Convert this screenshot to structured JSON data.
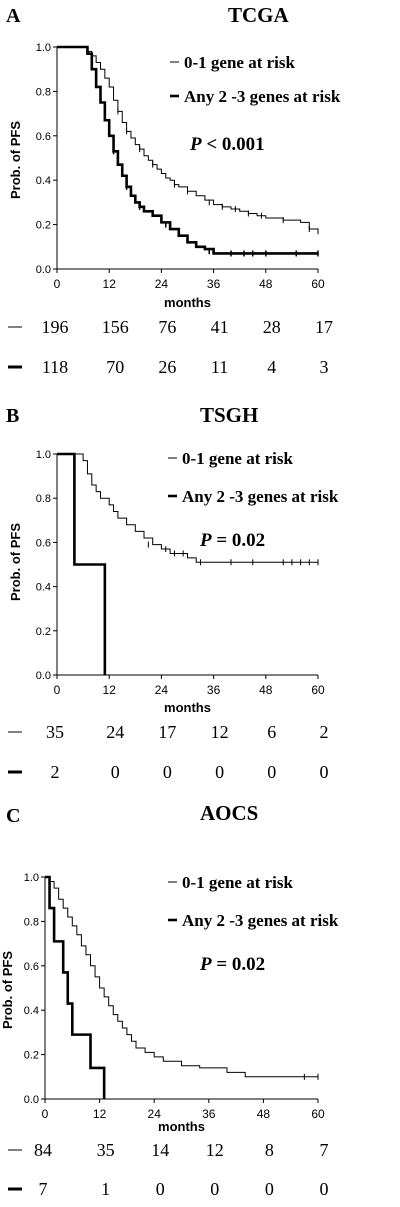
{
  "chart_data": [
    {
      "type": "line",
      "panel_letter": "A",
      "title": "TCGA",
      "xlabel": "months",
      "ylabel": "Prob. of PFS",
      "xlim": [
        0,
        60
      ],
      "ylim": [
        0,
        1.0
      ],
      "x_ticks": [
        0,
        12,
        24,
        36,
        48,
        60
      ],
      "y_ticks": [
        0.0,
        0.2,
        0.4,
        0.6,
        0.8,
        1.0
      ],
      "legend_position": "top-right",
      "p_label": "P",
      "p_text": " < 0.001",
      "series": [
        {
          "name": "0-1 gene at risk",
          "style": "thin",
          "points": [
            [
              0,
              1.0
            ],
            [
              6,
              1.0
            ],
            [
              7,
              0.98
            ],
            [
              8,
              0.96
            ],
            [
              9,
              0.93
            ],
            [
              10,
              0.9
            ],
            [
              11,
              0.86
            ],
            [
              12,
              0.82
            ],
            [
              13,
              0.76
            ],
            [
              14,
              0.71
            ],
            [
              15,
              0.66
            ],
            [
              16,
              0.62
            ],
            [
              17,
              0.59
            ],
            [
              18,
              0.56
            ],
            [
              19,
              0.54
            ],
            [
              20,
              0.51
            ],
            [
              21,
              0.49
            ],
            [
              22,
              0.47
            ],
            [
              23,
              0.45
            ],
            [
              24,
              0.43
            ],
            [
              25,
              0.41
            ],
            [
              26,
              0.4
            ],
            [
              27,
              0.38
            ],
            [
              28,
              0.37
            ],
            [
              30,
              0.35
            ],
            [
              32,
              0.33
            ],
            [
              34,
              0.31
            ],
            [
              36,
              0.29
            ],
            [
              38,
              0.28
            ],
            [
              40,
              0.27
            ],
            [
              42,
              0.26
            ],
            [
              44,
              0.25
            ],
            [
              46,
              0.24
            ],
            [
              48,
              0.23
            ],
            [
              52,
              0.22
            ],
            [
              56,
              0.21
            ],
            [
              58,
              0.18
            ],
            [
              60,
              0.17
            ]
          ],
          "censored": [
            [
              14,
              0.71
            ],
            [
              16,
              0.62
            ],
            [
              19,
              0.54
            ],
            [
              22,
              0.47
            ],
            [
              27,
              0.38
            ],
            [
              30,
              0.35
            ],
            [
              35,
              0.3
            ],
            [
              38,
              0.28
            ],
            [
              41,
              0.27
            ],
            [
              44,
              0.25
            ],
            [
              47,
              0.24
            ],
            [
              52,
              0.22
            ],
            [
              58,
              0.18
            ],
            [
              60,
              0.17
            ]
          ]
        },
        {
          "name": "Any 2 -3 genes at risk",
          "style": "thick",
          "points": [
            [
              0,
              1.0
            ],
            [
              6,
              1.0
            ],
            [
              7,
              0.97
            ],
            [
              8,
              0.9
            ],
            [
              9,
              0.82
            ],
            [
              10,
              0.75
            ],
            [
              11,
              0.67
            ],
            [
              12,
              0.6
            ],
            [
              13,
              0.53
            ],
            [
              14,
              0.47
            ],
            [
              15,
              0.42
            ],
            [
              16,
              0.37
            ],
            [
              17,
              0.33
            ],
            [
              18,
              0.3
            ],
            [
              19,
              0.28
            ],
            [
              20,
              0.26
            ],
            [
              22,
              0.24
            ],
            [
              24,
              0.21
            ],
            [
              26,
              0.18
            ],
            [
              28,
              0.15
            ],
            [
              30,
              0.12
            ],
            [
              32,
              0.1
            ],
            [
              34,
              0.09
            ],
            [
              36,
              0.07
            ],
            [
              60,
              0.07
            ]
          ],
          "censored": [
            [
              13,
              0.53
            ],
            [
              16,
              0.37
            ],
            [
              19,
              0.28
            ],
            [
              25,
              0.2
            ],
            [
              35,
              0.08
            ],
            [
              40,
              0.07
            ],
            [
              43,
              0.07
            ],
            [
              45,
              0.07
            ],
            [
              48,
              0.07
            ],
            [
              55,
              0.07
            ],
            [
              60,
              0.07
            ]
          ]
        }
      ],
      "at_risk": [
        {
          "values": [
            "196",
            "156",
            "76",
            "41",
            "28",
            "17"
          ]
        },
        {
          "values": [
            "118",
            "70",
            "26",
            "11",
            "4",
            "3"
          ]
        }
      ]
    },
    {
      "type": "line",
      "panel_letter": "B",
      "title": "TSGH",
      "xlabel": "months",
      "ylabel": "Prob. of PFS",
      "xlim": [
        0,
        60
      ],
      "ylim": [
        0,
        1.0
      ],
      "x_ticks": [
        0,
        12,
        24,
        36,
        48,
        60
      ],
      "y_ticks": [
        0.0,
        0.2,
        0.4,
        0.6,
        0.8,
        1.0
      ],
      "legend_position": "top-right",
      "p_label": "P",
      "p_text": " = 0.02",
      "series": [
        {
          "name": "0-1 gene at risk",
          "style": "thin",
          "points": [
            [
              0,
              1.0
            ],
            [
              5,
              1.0
            ],
            [
              6,
              0.97
            ],
            [
              7,
              0.91
            ],
            [
              8,
              0.86
            ],
            [
              9,
              0.83
            ],
            [
              10,
              0.8
            ],
            [
              12,
              0.77
            ],
            [
              13,
              0.74
            ],
            [
              14,
              0.71
            ],
            [
              16,
              0.68
            ],
            [
              18,
              0.65
            ],
            [
              20,
              0.62
            ],
            [
              22,
              0.59
            ],
            [
              24,
              0.57
            ],
            [
              26,
              0.55
            ],
            [
              30,
              0.53
            ],
            [
              32,
              0.51
            ],
            [
              60,
              0.51
            ]
          ],
          "censored": [
            [
              21,
              0.59
            ],
            [
              25,
              0.57
            ],
            [
              27,
              0.55
            ],
            [
              29,
              0.55
            ],
            [
              33,
              0.51
            ],
            [
              40,
              0.51
            ],
            [
              45,
              0.51
            ],
            [
              52,
              0.51
            ],
            [
              54,
              0.51
            ],
            [
              56,
              0.51
            ],
            [
              58,
              0.51
            ],
            [
              60,
              0.51
            ]
          ]
        },
        {
          "name": "Any 2 -3 genes at risk",
          "style": "thick",
          "points": [
            [
              0,
              1.0
            ],
            [
              4,
              1.0
            ],
            [
              4,
              0.5
            ],
            [
              11,
              0.5
            ],
            [
              11,
              0.0
            ]
          ],
          "censored": []
        }
      ],
      "at_risk": [
        {
          "values": [
            "35",
            "24",
            "17",
            "12",
            "6",
            "2"
          ]
        },
        {
          "values": [
            "2",
            "0",
            "0",
            "0",
            "0",
            "0"
          ]
        }
      ]
    },
    {
      "type": "line",
      "panel_letter": "C",
      "title": "AOCS",
      "xlabel": "months",
      "ylabel": "Prob. of PFS",
      "xlim": [
        0,
        60
      ],
      "ylim": [
        0,
        1.0
      ],
      "x_ticks": [
        0,
        12,
        24,
        36,
        48,
        60
      ],
      "y_ticks": [
        0.0,
        0.2,
        0.4,
        0.6,
        0.8,
        1.0
      ],
      "legend_position": "top-right",
      "p_label": "P",
      "p_text": " = 0.02",
      "series": [
        {
          "name": "0-1 gene at risk",
          "style": "thin",
          "points": [
            [
              0,
              1.0
            ],
            [
              1,
              0.98
            ],
            [
              2,
              0.95
            ],
            [
              3,
              0.9
            ],
            [
              4,
              0.86
            ],
            [
              5,
              0.82
            ],
            [
              6,
              0.78
            ],
            [
              7,
              0.74
            ],
            [
              8,
              0.69
            ],
            [
              9,
              0.65
            ],
            [
              10,
              0.6
            ],
            [
              11,
              0.55
            ],
            [
              12,
              0.5
            ],
            [
              13,
              0.46
            ],
            [
              14,
              0.42
            ],
            [
              15,
              0.38
            ],
            [
              16,
              0.35
            ],
            [
              17,
              0.32
            ],
            [
              18,
              0.29
            ],
            [
              19,
              0.26
            ],
            [
              20,
              0.23
            ],
            [
              22,
              0.21
            ],
            [
              24,
              0.19
            ],
            [
              26,
              0.17
            ],
            [
              30,
              0.15
            ],
            [
              34,
              0.14
            ],
            [
              40,
              0.12
            ],
            [
              44,
              0.1
            ],
            [
              60,
              0.1
            ]
          ],
          "censored": [
            [
              57,
              0.1
            ],
            [
              60,
              0.1
            ]
          ]
        },
        {
          "name": "Any 2 -3 genes at risk",
          "style": "thick",
          "points": [
            [
              0,
              1.0
            ],
            [
              1,
              1.0
            ],
            [
              1,
              0.86
            ],
            [
              2,
              0.86
            ],
            [
              2,
              0.71
            ],
            [
              4,
              0.71
            ],
            [
              4,
              0.57
            ],
            [
              5,
              0.57
            ],
            [
              5,
              0.43
            ],
            [
              6,
              0.43
            ],
            [
              6,
              0.29
            ],
            [
              10,
              0.29
            ],
            [
              10,
              0.14
            ],
            [
              13,
              0.14
            ],
            [
              13,
              0.0
            ]
          ],
          "censored": []
        }
      ],
      "at_risk": [
        {
          "values": [
            "84",
            "35",
            "14",
            "12",
            "8",
            "7"
          ]
        },
        {
          "values": [
            "7",
            "1",
            "0",
            "0",
            "0",
            "0"
          ]
        }
      ]
    }
  ]
}
